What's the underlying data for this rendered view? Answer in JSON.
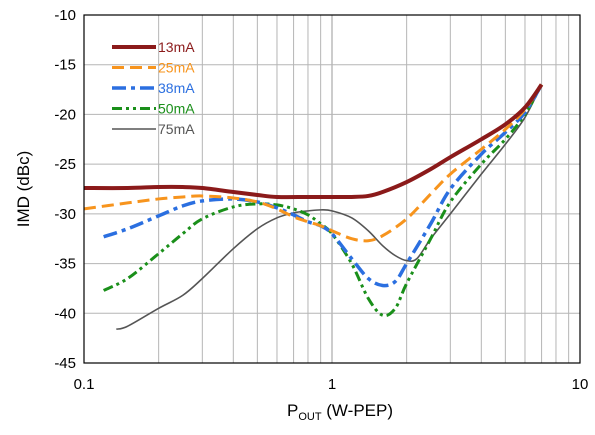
{
  "chart_data": {
    "type": "line",
    "xscale": "log",
    "xlim": [
      0.1,
      10
    ],
    "ylim": [
      -45,
      -10
    ],
    "grid": true,
    "legend_position": "top-left",
    "xlabel": {
      "main": "P",
      "sub": "OUT",
      "rest": " (W-PEP)"
    },
    "ylabel": "IMD (dBc)",
    "x_ticks": [
      {
        "value": 0.1,
        "label": "0.1"
      },
      {
        "value": 1,
        "label": "1"
      },
      {
        "value": 10,
        "label": "10"
      }
    ],
    "y_ticks": [
      {
        "value": -10,
        "label": "-10"
      },
      {
        "value": -15,
        "label": "-15"
      },
      {
        "value": -20,
        "label": "-20"
      },
      {
        "value": -25,
        "label": "-25"
      },
      {
        "value": -30,
        "label": "-30"
      },
      {
        "value": -35,
        "label": "-35"
      },
      {
        "value": -40,
        "label": "-40"
      },
      {
        "value": -45,
        "label": "-45"
      }
    ],
    "series": [
      {
        "name": "13mA",
        "color": "#8b1a1a",
        "dash": "solid",
        "width": 4,
        "points": [
          [
            0.1,
            -27.4
          ],
          [
            0.15,
            -27.4
          ],
          [
            0.2,
            -27.3
          ],
          [
            0.25,
            -27.3
          ],
          [
            0.3,
            -27.4
          ],
          [
            0.4,
            -27.8
          ],
          [
            0.5,
            -28.1
          ],
          [
            0.6,
            -28.3
          ],
          [
            0.8,
            -28.3
          ],
          [
            1.0,
            -28.3
          ],
          [
            1.2,
            -28.3
          ],
          [
            1.4,
            -28.2
          ],
          [
            1.6,
            -27.8
          ],
          [
            2.0,
            -26.8
          ],
          [
            2.5,
            -25.5
          ],
          [
            3.0,
            -24.3
          ],
          [
            4.0,
            -22.5
          ],
          [
            5.0,
            -21.0
          ],
          [
            6.0,
            -19.3
          ],
          [
            7.0,
            -17.0
          ]
        ]
      },
      {
        "name": "25mA",
        "color": "#f7941d",
        "dash": "longdash",
        "width": 3,
        "points": [
          [
            0.1,
            -29.5
          ],
          [
            0.15,
            -28.9
          ],
          [
            0.2,
            -28.5
          ],
          [
            0.25,
            -28.3
          ],
          [
            0.3,
            -28.2
          ],
          [
            0.4,
            -28.4
          ],
          [
            0.5,
            -28.8
          ],
          [
            0.6,
            -29.5
          ],
          [
            0.7,
            -30.3
          ],
          [
            0.8,
            -30.8
          ],
          [
            0.9,
            -31.2
          ],
          [
            1.0,
            -31.7
          ],
          [
            1.2,
            -32.5
          ],
          [
            1.4,
            -32.7
          ],
          [
            1.6,
            -32.2
          ],
          [
            2.0,
            -30.5
          ],
          [
            2.5,
            -28.0
          ],
          [
            3.0,
            -26.0
          ],
          [
            4.0,
            -23.5
          ],
          [
            5.0,
            -21.5
          ],
          [
            6.0,
            -19.5
          ],
          [
            7.0,
            -17.0
          ]
        ]
      },
      {
        "name": "38mA",
        "color": "#2b6fe0",
        "dash": "dashdot",
        "width": 3.5,
        "points": [
          [
            0.12,
            -32.3
          ],
          [
            0.15,
            -31.5
          ],
          [
            0.2,
            -30.2
          ],
          [
            0.25,
            -29.2
          ],
          [
            0.3,
            -28.7
          ],
          [
            0.4,
            -28.5
          ],
          [
            0.5,
            -28.8
          ],
          [
            0.6,
            -29.4
          ],
          [
            0.7,
            -30.1
          ],
          [
            0.8,
            -30.8
          ],
          [
            0.9,
            -31.2
          ],
          [
            1.0,
            -32.0
          ],
          [
            1.2,
            -34.5
          ],
          [
            1.4,
            -36.5
          ],
          [
            1.6,
            -37.2
          ],
          [
            1.8,
            -36.8
          ],
          [
            2.0,
            -35.0
          ],
          [
            2.5,
            -31.0
          ],
          [
            3.0,
            -27.5
          ],
          [
            4.0,
            -24.0
          ],
          [
            5.0,
            -21.8
          ],
          [
            6.0,
            -19.8
          ],
          [
            7.0,
            -17.0
          ]
        ]
      },
      {
        "name": "50mA",
        "color": "#1a8f1a",
        "dash": "dashdotdot",
        "width": 3,
        "points": [
          [
            0.12,
            -37.7
          ],
          [
            0.15,
            -36.5
          ],
          [
            0.2,
            -34.0
          ],
          [
            0.25,
            -32.0
          ],
          [
            0.3,
            -30.5
          ],
          [
            0.4,
            -29.3
          ],
          [
            0.5,
            -29.0
          ],
          [
            0.6,
            -29.1
          ],
          [
            0.7,
            -29.5
          ],
          [
            0.8,
            -30.1
          ],
          [
            0.9,
            -31.0
          ],
          [
            1.0,
            -32.0
          ],
          [
            1.2,
            -35.0
          ],
          [
            1.4,
            -38.5
          ],
          [
            1.6,
            -40.2
          ],
          [
            1.8,
            -39.5
          ],
          [
            2.0,
            -37.0
          ],
          [
            2.5,
            -32.5
          ],
          [
            3.0,
            -28.8
          ],
          [
            4.0,
            -25.0
          ],
          [
            5.0,
            -22.5
          ],
          [
            6.0,
            -20.0
          ],
          [
            7.0,
            -17.0
          ]
        ]
      },
      {
        "name": "75mA",
        "color": "#555555",
        "dash": "solid",
        "width": 1.6,
        "points": [
          [
            0.135,
            -41.6
          ],
          [
            0.15,
            -41.3
          ],
          [
            0.2,
            -39.5
          ],
          [
            0.25,
            -38.2
          ],
          [
            0.3,
            -36.5
          ],
          [
            0.4,
            -33.5
          ],
          [
            0.5,
            -31.5
          ],
          [
            0.6,
            -30.4
          ],
          [
            0.7,
            -29.9
          ],
          [
            0.8,
            -29.7
          ],
          [
            0.9,
            -29.6
          ],
          [
            1.0,
            -29.7
          ],
          [
            1.2,
            -30.4
          ],
          [
            1.4,
            -31.7
          ],
          [
            1.6,
            -33.2
          ],
          [
            1.8,
            -34.2
          ],
          [
            2.0,
            -34.7
          ],
          [
            2.2,
            -34.5
          ],
          [
            2.5,
            -32.5
          ],
          [
            3.0,
            -30.0
          ],
          [
            4.0,
            -26.0
          ],
          [
            5.0,
            -23.0
          ],
          [
            6.0,
            -20.3
          ],
          [
            7.0,
            -17.0
          ]
        ]
      }
    ]
  }
}
